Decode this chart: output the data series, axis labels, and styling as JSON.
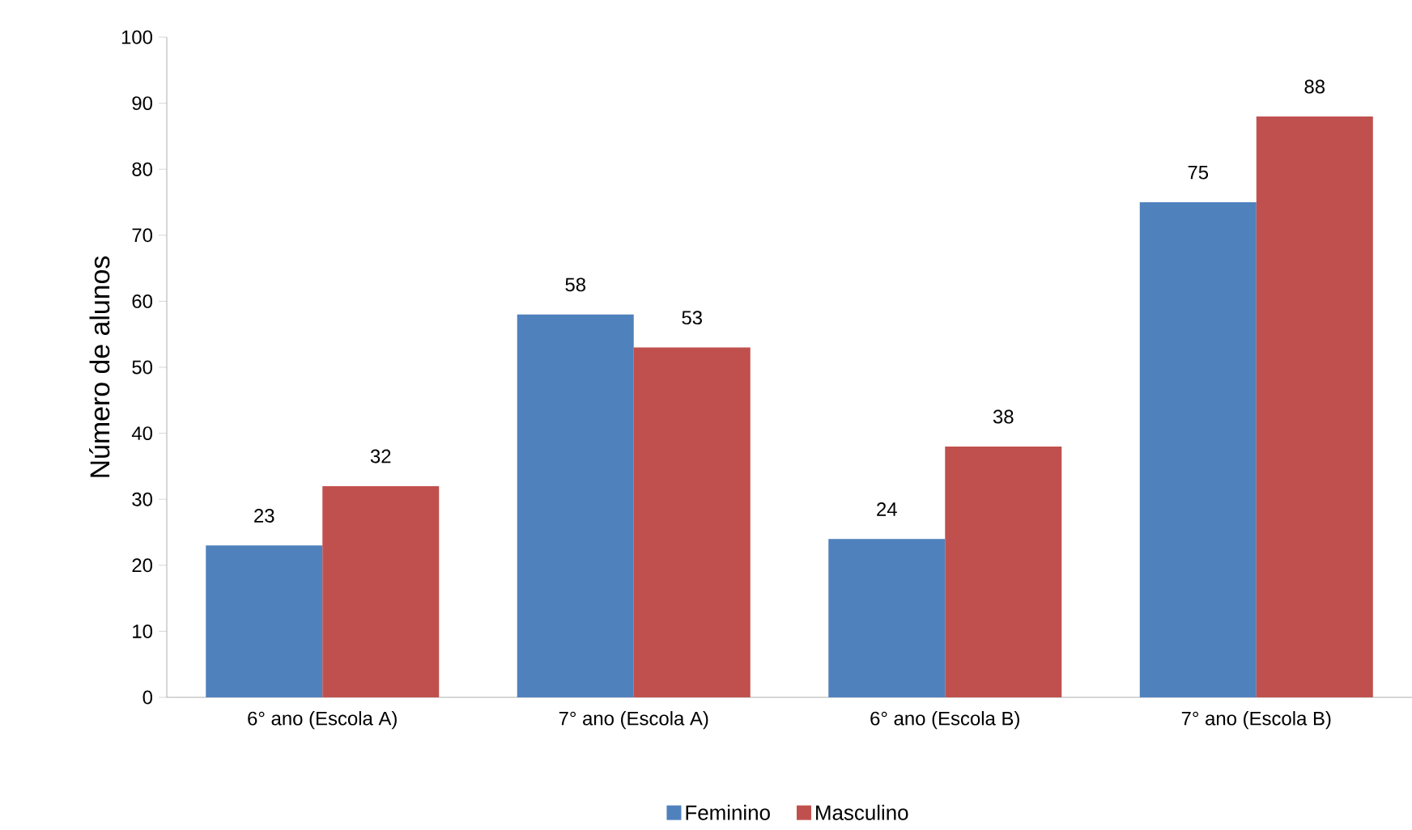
{
  "chart_data": {
    "type": "bar",
    "ylabel": "Número de alunos",
    "categories": [
      "6° ano (Escola A)",
      "7° ano (Escola A)",
      "6° ano (Escola B)",
      "7° ano (Escola B)"
    ],
    "series": [
      {
        "name": "Feminino",
        "color": "#4f81bd",
        "values": [
          23,
          58,
          24,
          75
        ]
      },
      {
        "name": "Masculino",
        "color": "#c0504d",
        "values": [
          32,
          53,
          38,
          88
        ]
      }
    ],
    "ylim": [
      0,
      100
    ],
    "yticks": [
      0,
      10,
      20,
      30,
      40,
      50,
      60,
      70,
      80,
      90,
      100
    ],
    "data_labels": true,
    "legend": "bottom",
    "grid": false
  }
}
